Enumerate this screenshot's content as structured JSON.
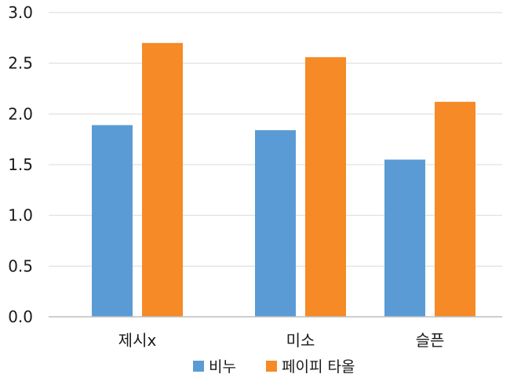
{
  "chart_data": {
    "type": "bar",
    "categories": [
      "제시x",
      "미소",
      "슬픈"
    ],
    "series": [
      {
        "name": "비누",
        "values": [
          1.89,
          1.84,
          1.55
        ],
        "color": "#5b9bd5"
      },
      {
        "name": "페이피 타올",
        "values": [
          2.7,
          2.56,
          2.12
        ],
        "color": "#f58a27"
      }
    ],
    "ylim": [
      0,
      3.0
    ],
    "yticks": [
      "0.0",
      "0.5",
      "1.0",
      "1.5",
      "2.0",
      "2.5",
      "3.0"
    ],
    "grid": true,
    "legend_position": "bottom",
    "gridline_color": "#d9d9d9",
    "axis_color": "#bfbfbf"
  }
}
